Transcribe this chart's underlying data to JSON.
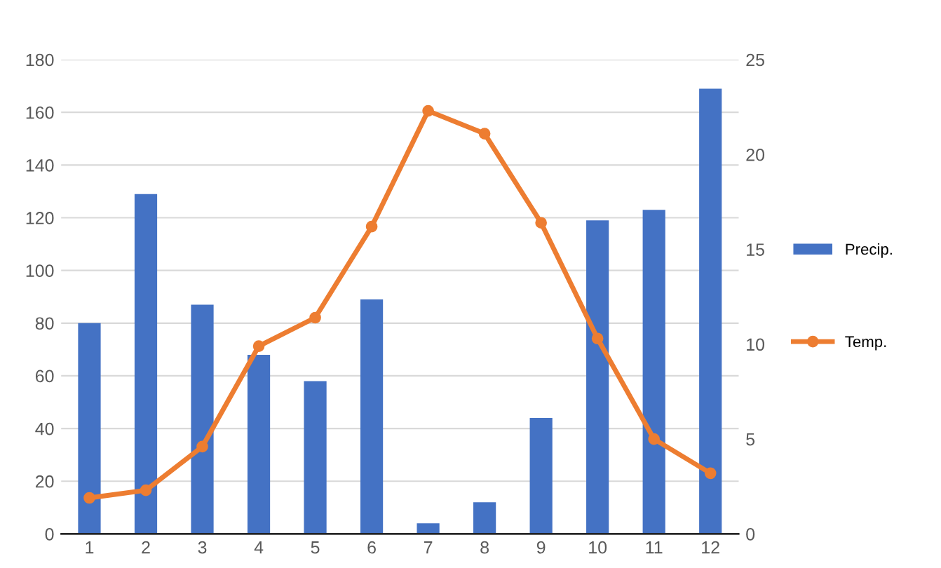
{
  "chart_data": {
    "type": "bar",
    "categories": [
      "1",
      "2",
      "3",
      "4",
      "5",
      "6",
      "7",
      "8",
      "9",
      "10",
      "11",
      "12"
    ],
    "series": [
      {
        "name": "Precip.",
        "color": "#4472c4",
        "values": [
          80,
          129,
          87,
          68,
          58,
          89,
          4,
          12,
          44,
          119,
          123,
          169
        ]
      },
      {
        "name": "Temp.",
        "type": "line",
        "axis": "y2",
        "color": "#ed7d31",
        "marker": "circle",
        "values": [
          1.9,
          2.3,
          4.6,
          9.9,
          11.4,
          16.2,
          22.3,
          21.1,
          16.4,
          10.3,
          5.0,
          3.2
        ]
      }
    ],
    "ylim": [
      0,
      180
    ],
    "yticks": [
      0,
      20,
      40,
      60,
      80,
      100,
      120,
      140,
      160,
      180
    ],
    "y2lim": [
      0,
      25
    ],
    "y2ticks": [
      0,
      5,
      10,
      15,
      20,
      25
    ],
    "grid": "y",
    "legend": "right"
  }
}
